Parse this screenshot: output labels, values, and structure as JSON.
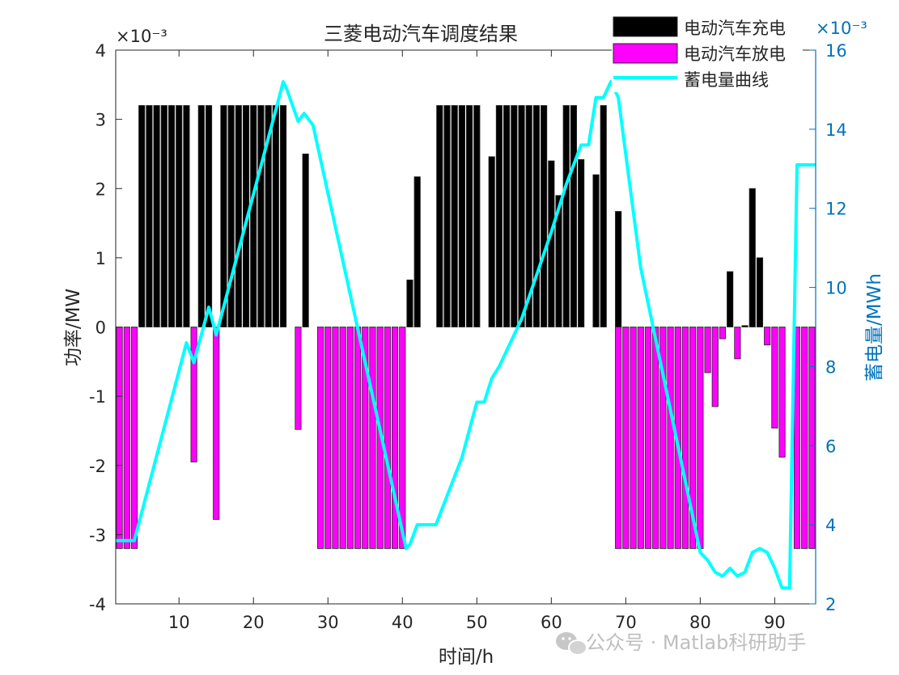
{
  "chart_data": {
    "type": "bar+line",
    "title": "三菱电动汽车调度结果",
    "xlabel": "时间/h",
    "ylabel_left": "功率/MW",
    "ylabel_right": "蓄电量/MWh",
    "left_scale_note": "×10⁻³",
    "right_scale_note": "×10⁻³",
    "xlim": [
      1.5,
      95.5
    ],
    "ylim_left": [
      -4,
      4
    ],
    "ylim_right": [
      2,
      16
    ],
    "x_ticks": [
      10,
      20,
      30,
      40,
      50,
      60,
      70,
      80,
      90
    ],
    "y_ticks_left": [
      -4,
      -3,
      -2,
      -1,
      0,
      1,
      2,
      3,
      4
    ],
    "y_ticks_right": [
      2,
      4,
      6,
      8,
      10,
      12,
      14,
      16
    ],
    "legend_position": "top-right",
    "colors": {
      "charge": "#000000",
      "discharge": "#ff00ff",
      "energy": "#00ffff",
      "right_axis": "#0072bd"
    },
    "series": [
      {
        "name": "电动汽车充电",
        "kind": "bar",
        "points": [
          [
            5,
            3.2
          ],
          [
            6,
            3.2
          ],
          [
            7,
            3.2
          ],
          [
            8,
            3.2
          ],
          [
            9,
            3.2
          ],
          [
            10,
            3.2
          ],
          [
            11,
            3.2
          ],
          [
            13,
            3.2
          ],
          [
            14,
            3.2
          ],
          [
            16,
            3.2
          ],
          [
            17,
            3.2
          ],
          [
            18,
            3.2
          ],
          [
            19,
            3.2
          ],
          [
            20,
            3.2
          ],
          [
            21,
            3.2
          ],
          [
            22,
            3.2
          ],
          [
            23,
            3.2
          ],
          [
            24,
            3.2
          ],
          [
            27,
            2.5
          ],
          [
            41,
            0.68
          ],
          [
            42,
            2.17
          ],
          [
            45,
            3.2
          ],
          [
            46,
            3.2
          ],
          [
            47,
            3.2
          ],
          [
            48,
            3.2
          ],
          [
            49,
            3.2
          ],
          [
            50,
            3.2
          ],
          [
            52,
            2.46
          ],
          [
            53,
            3.2
          ],
          [
            54,
            3.2
          ],
          [
            55,
            3.2
          ],
          [
            56,
            3.2
          ],
          [
            57,
            3.2
          ],
          [
            58,
            3.2
          ],
          [
            59,
            3.2
          ],
          [
            60,
            2.4
          ],
          [
            61,
            1.9
          ],
          [
            62,
            3.2
          ],
          [
            63,
            3.2
          ],
          [
            64,
            2.42
          ],
          [
            66,
            2.2
          ],
          [
            67,
            3.2
          ],
          [
            69,
            1.67
          ],
          [
            84,
            0.8
          ],
          [
            86,
            0.02
          ],
          [
            87,
            2.0
          ],
          [
            88,
            1.0
          ]
        ]
      },
      {
        "name": "电动汽车放电",
        "kind": "bar",
        "points": [
          [
            2,
            -3.2
          ],
          [
            3,
            -3.2
          ],
          [
            4,
            -3.2
          ],
          [
            12,
            -1.95
          ],
          [
            15,
            -2.78
          ],
          [
            26,
            -1.48
          ],
          [
            29,
            -3.2
          ],
          [
            30,
            -3.2
          ],
          [
            31,
            -3.2
          ],
          [
            32,
            -3.2
          ],
          [
            33,
            -3.2
          ],
          [
            34,
            -3.2
          ],
          [
            35,
            -3.2
          ],
          [
            36,
            -3.2
          ],
          [
            37,
            -3.2
          ],
          [
            38,
            -3.2
          ],
          [
            39,
            -3.2
          ],
          [
            40,
            -3.2
          ],
          [
            69,
            -3.2
          ],
          [
            70,
            -3.2
          ],
          [
            71,
            -3.2
          ],
          [
            72,
            -3.2
          ],
          [
            73,
            -3.2
          ],
          [
            74,
            -3.2
          ],
          [
            75,
            -3.2
          ],
          [
            76,
            -3.2
          ],
          [
            77,
            -3.2
          ],
          [
            78,
            -3.2
          ],
          [
            79,
            -3.2
          ],
          [
            80,
            -3.2
          ],
          [
            81,
            -0.66
          ],
          [
            82,
            -1.15
          ],
          [
            83,
            -0.17
          ],
          [
            85,
            -0.46
          ],
          [
            89,
            -0.26
          ],
          [
            90,
            -1.46
          ],
          [
            91,
            -1.88
          ],
          [
            93,
            -3.2
          ],
          [
            94,
            -3.2
          ],
          [
            95,
            -3.2
          ]
        ]
      },
      {
        "name": "蓄电量曲线",
        "kind": "line",
        "points": [
          [
            1.5,
            3.6
          ],
          [
            4,
            3.6
          ],
          [
            11,
            8.6
          ],
          [
            12,
            8.1
          ],
          [
            14,
            9.5
          ],
          [
            15,
            8.8
          ],
          [
            24,
            15.2
          ],
          [
            24.5,
            15.0
          ],
          [
            26,
            14.2
          ],
          [
            26.8,
            14.4
          ],
          [
            28,
            14.1
          ],
          [
            40.5,
            3.4
          ],
          [
            41,
            3.5
          ],
          [
            42,
            4.0
          ],
          [
            44.5,
            4.0
          ],
          [
            48,
            5.7
          ],
          [
            50,
            7.1
          ],
          [
            51,
            7.1
          ],
          [
            52,
            7.7
          ],
          [
            53,
            8.0
          ],
          [
            56,
            9.2
          ],
          [
            58,
            10.3
          ],
          [
            60,
            11.4
          ],
          [
            62,
            12.6
          ],
          [
            64,
            13.6
          ],
          [
            65,
            13.6
          ],
          [
            66,
            14.8
          ],
          [
            67,
            14.8
          ],
          [
            68,
            15.2
          ],
          [
            69,
            14.8
          ],
          [
            72,
            10.5
          ],
          [
            80,
            3.3
          ],
          [
            81,
            3.1
          ],
          [
            82,
            2.8
          ],
          [
            83,
            2.7
          ],
          [
            84,
            2.9
          ],
          [
            85,
            2.7
          ],
          [
            86,
            2.8
          ],
          [
            87,
            3.3
          ],
          [
            88,
            3.4
          ],
          [
            89,
            3.3
          ],
          [
            90,
            2.9
          ],
          [
            91,
            2.4
          ],
          [
            92,
            2.4
          ],
          [
            93,
            13.1
          ],
          [
            95.5,
            13.1
          ]
        ]
      }
    ]
  },
  "watermark": "公众号 · Matlab科研助手"
}
